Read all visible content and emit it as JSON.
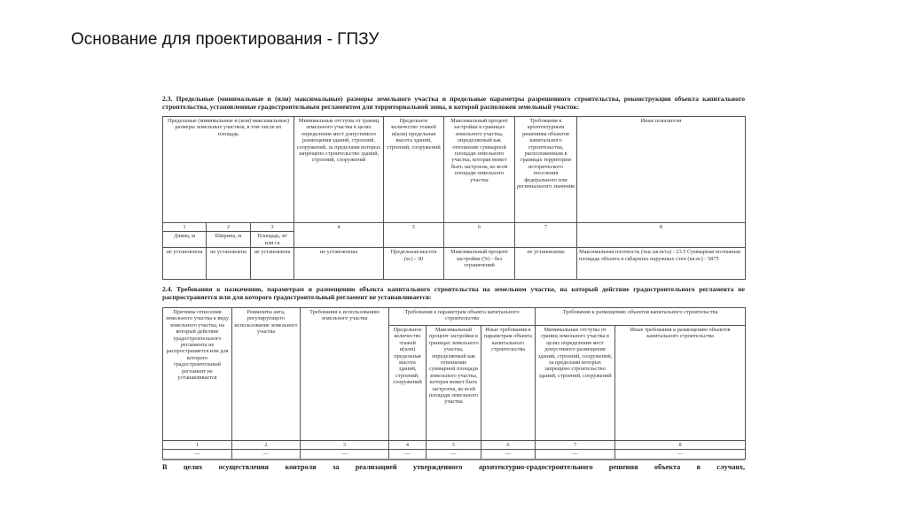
{
  "slide_title": "Основание для проектирования - ГПЗУ",
  "section_23": {
    "heading": "2.3. Предельные (минимальные и (или) максимальные) размеры земельного участка и предельные параметры разрешенного строительства, реконструкции объекта капитального строительства, установленные градостроительным регламентом для территориальной зоны, в которой расположен земельный участок:",
    "headers": [
      "Предельные (минимальные и (или) максимальные) размеры земельных участков, в том числе их площадь",
      "Минимальные отступы от границ земельного участка в целях определения мест допустимого размещения зданий, строений, сооружений, за пределами которых запрещено строительство зданий, строений, сооружений",
      "Предельное количество этажей и(или) предельная высота зданий, строений, сооружений",
      "Максимальный процент застройки в границах земельного участка, определяемый как отношение суммарной площади земельного участка, которая может быть застроена, ко всей площади земельного участка",
      "Требования к архитектурным решениям объектов капитального строительства, расположенным в границах территории исторического поселения федерального или регионального значения",
      "Иные показатели"
    ],
    "numbers": [
      "1",
      "2",
      "3",
      "4",
      "5",
      "6",
      "7",
      "8"
    ],
    "units": [
      "Длина, м",
      "Ширина, м",
      "Площадь, м² или га"
    ],
    "values": [
      "не установлена",
      "не установлена",
      "не установлена",
      "не установлены",
      "Предельная высота (м.) - 30",
      "Максимальный процент застройки (%) - без ограничений",
      "не установлены",
      "Максимальная плотность (тыс.кв.м/га) - 23.5 Суммарная поэтажная площадь объекта в габаритах наружных стен (кв.м.) - 5875"
    ]
  },
  "section_24": {
    "heading": "2.4. Требования к назначению, параметрам и размещению объекта капитального строительства на земельном участке, на который действие градостроительного регламента не распространяется или для которого градостроительный регламент не устанавливается:",
    "headers": [
      "Причины отнесения земельного участка к виду земельного участка, на который действие градостроительного регламента не распространяется или для которого градостроительный регламент не устанавливается",
      "Реквизиты акта, регулирующего использование земельного участка",
      "Требования к использованию земельного участка"
    ],
    "group_params": "Требования к параметрам объекта капитального строительства",
    "group_placement": "Требования к размещению объектов капитального строительства",
    "subheaders": [
      "Предельное количество этажей и(или) предельная высота зданий, строений, сооружений",
      "Максимальный процент застройки в границах земельного участка, определяемый как отношение суммарной площади земельного участка, которая может быть застроена, ко всей площади земельного участка",
      "Иные требования к параметрам объекта капитального строительства",
      "Минимальные отступы от границ земельного участка в целях определения мест допустимого размещения зданий, строений, сооружений, за пределами которых запрещено строительство зданий, строений, сооружений",
      "Иные требования к размещению объектов капитального строительства"
    ],
    "numbers": [
      "1",
      "2",
      "3",
      "4",
      "5",
      "6",
      "7",
      "8"
    ],
    "dashes": [
      "—",
      "—",
      "—",
      "—",
      "—",
      "—",
      "—",
      "—"
    ]
  },
  "footer_text": "В целях осуществления контроля за реализацией утвержденного архитектурно-градостроительного решения объекта в случаях,"
}
